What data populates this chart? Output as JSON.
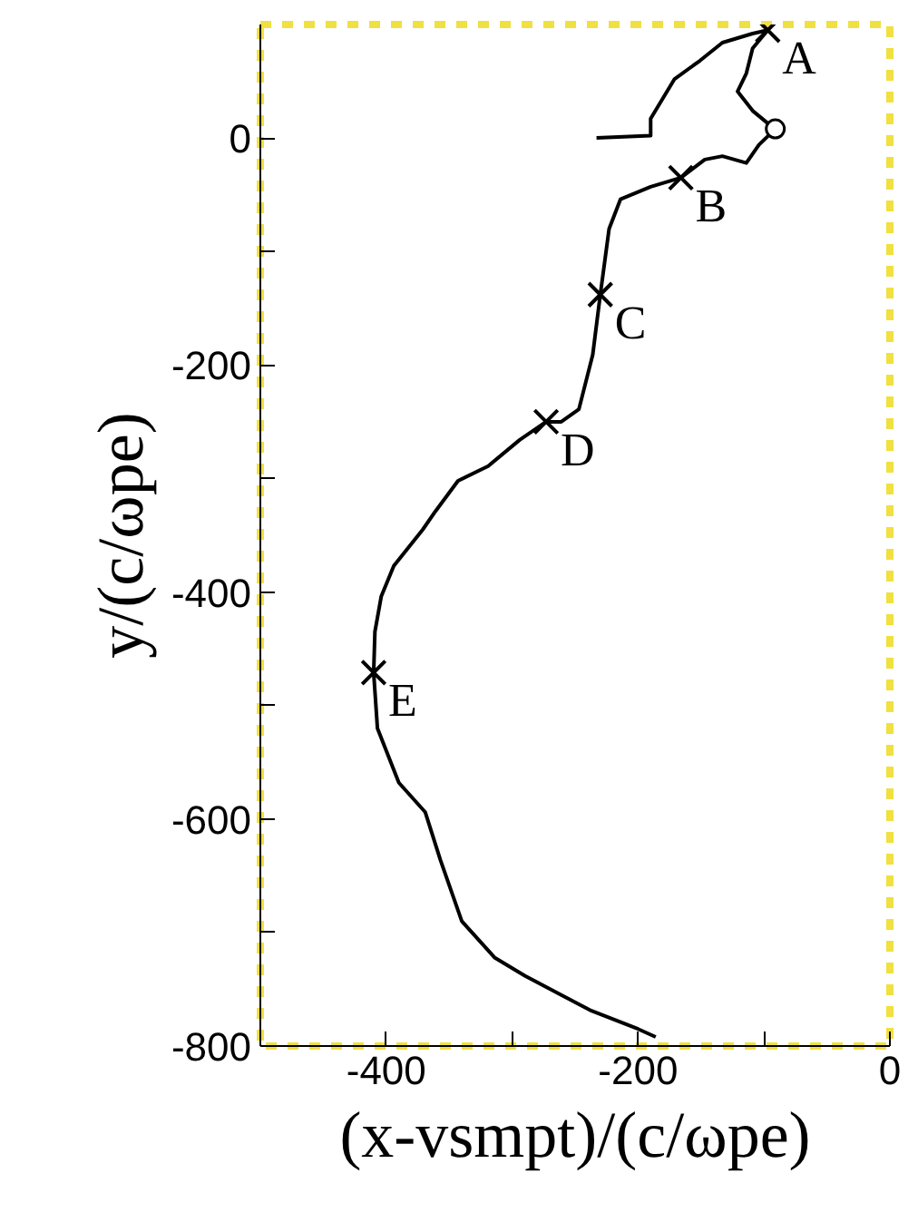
{
  "chart_data": {
    "type": "line",
    "xlabel": "(x-vsmpt)/(c/ωpe)",
    "ylabel": "y/(c/ωpe)",
    "xlim": [
      -500,
      0
    ],
    "ylim": [
      -800,
      100
    ],
    "xticks": [
      {
        "value": -500,
        "label": null
      },
      -400,
      {
        "value": -300,
        "label": null
      },
      -200,
      {
        "value": -100,
        "label": null
      },
      0
    ],
    "yticks": [
      -800,
      {
        "value": -700,
        "label": null
      },
      -600,
      {
        "value": -500,
        "label": null
      },
      -400,
      {
        "value": -300,
        "label": null
      },
      -200,
      {
        "value": -100,
        "label": null
      },
      0
    ],
    "grid": false,
    "line_style": "solid",
    "series": [
      {
        "color": "#000000",
        "x": [
          -233,
          -190,
          -190,
          -171,
          -151,
          -133,
          -109,
          -97,
          -109,
          -114,
          -121,
          -109,
          -97,
          -91,
          -104,
          -114,
          -133,
          -147,
          -166,
          -190,
          -214,
          -223,
          -230,
          -236,
          -247,
          -261,
          -273,
          -294,
          -319,
          -343,
          -361,
          -371,
          -394,
          -404,
          -409,
          -410,
          -407,
          -390,
          -369,
          -357,
          -340,
          -314,
          -290,
          -261,
          -237,
          -200,
          -186
        ],
        "values": [
          0,
          2,
          17,
          52,
          68,
          84,
          92,
          95,
          79,
          57,
          41,
          24,
          13,
          8,
          -6,
          -22,
          -16,
          -19,
          -35,
          -43,
          -54,
          -80,
          -138,
          -191,
          -239,
          -250,
          -250,
          -266,
          -289,
          -302,
          -329,
          -345,
          -377,
          -404,
          -435,
          -471,
          -520,
          -568,
          -594,
          -636,
          -690,
          -722,
          -738,
          -755,
          -769,
          -785,
          -792
        ]
      },
      {
        "type": "scatter",
        "marker": "cross",
        "color": "#000000",
        "x": [
          -97,
          -166,
          -230,
          -273,
          -410
        ],
        "values": [
          95,
          -35,
          -138,
          -250,
          -471
        ]
      },
      {
        "type": "scatter",
        "marker": "circle",
        "color": "#000000",
        "x": [
          -91
        ],
        "values": [
          8
        ]
      }
    ],
    "annotations": [
      {
        "text": "A",
        "x": -97,
        "y": 95
      },
      {
        "text": "B",
        "x": -166,
        "y": -35
      },
      {
        "text": "C",
        "x": -230,
        "y": -138
      },
      {
        "text": "D",
        "x": -273,
        "y": -250
      },
      {
        "text": "E",
        "x": -410,
        "y": -471
      }
    ]
  }
}
